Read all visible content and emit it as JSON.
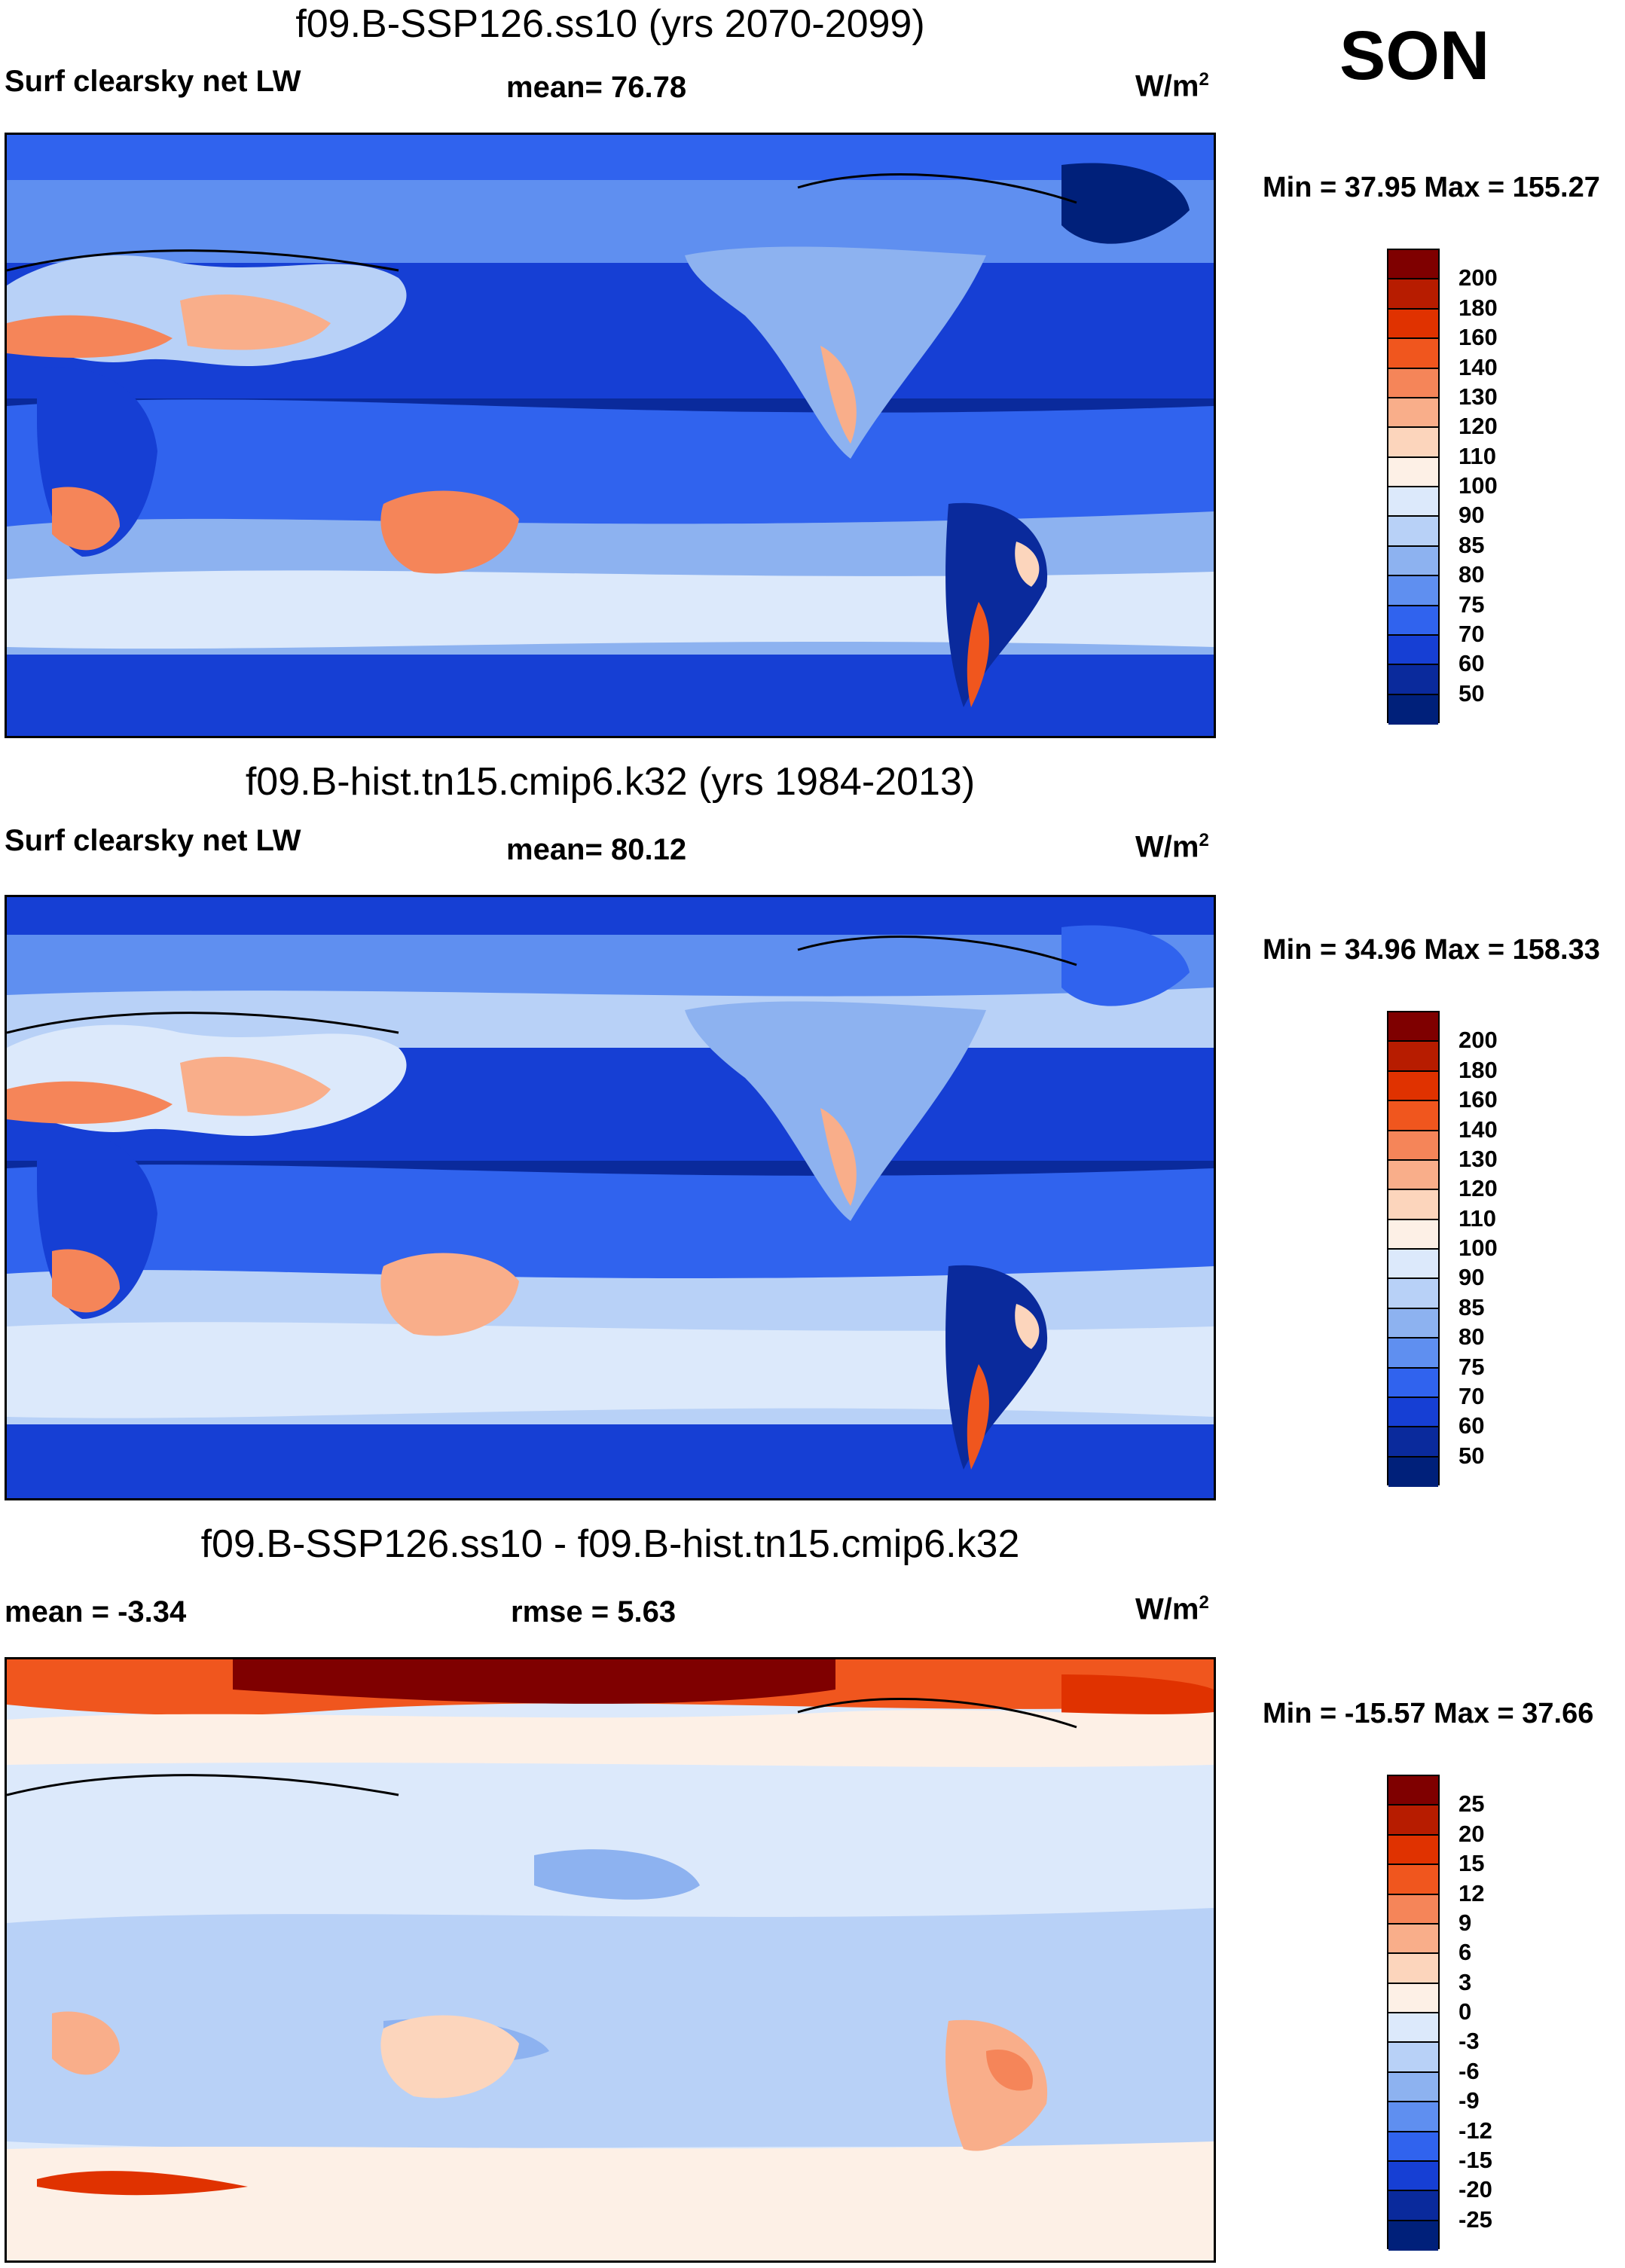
{
  "season": "SON",
  "panels": [
    {
      "title": "f09.B-SSP126.ss10 (yrs 2070-2099)",
      "left_label": "Surf clearsky net LW",
      "center_label": "mean=  76.78",
      "unit": "W/m",
      "unit_sup": "2",
      "minmax": "Min =  37.95 Max = 155.27",
      "colorbar": {
        "labels": [
          "200",
          "180",
          "160",
          "140",
          "130",
          "120",
          "110",
          "100",
          "90",
          "85",
          "80",
          "75",
          "70",
          "60",
          "50"
        ],
        "colors": [
          "#7f0000",
          "#b71c00",
          "#e03200",
          "#f0561e",
          "#f58559",
          "#f9ae8a",
          "#fcd5bc",
          "#fdf0e6",
          "#dce9fb",
          "#b8d1f7",
          "#8db2f0",
          "#5f8ff0",
          "#3063ee",
          "#163fd4",
          "#0a2a9c",
          "#00207a"
        ]
      }
    },
    {
      "title": "f09.B-hist.tn15.cmip6.k32 (yrs 1984-2013)",
      "left_label": "Surf clearsky net LW",
      "center_label": "mean=  80.12",
      "unit": "W/m",
      "unit_sup": "2",
      "minmax": "Min =  34.96 Max = 158.33",
      "colorbar": {
        "labels": [
          "200",
          "180",
          "160",
          "140",
          "130",
          "120",
          "110",
          "100",
          "90",
          "85",
          "80",
          "75",
          "70",
          "60",
          "50"
        ],
        "colors": [
          "#7f0000",
          "#b71c00",
          "#e03200",
          "#f0561e",
          "#f58559",
          "#f9ae8a",
          "#fcd5bc",
          "#fdf0e6",
          "#dce9fb",
          "#b8d1f7",
          "#8db2f0",
          "#5f8ff0",
          "#3063ee",
          "#163fd4",
          "#0a2a9c",
          "#00207a"
        ]
      }
    },
    {
      "title": "f09.B-SSP126.ss10 - f09.B-hist.tn15.cmip6.k32",
      "left_label": "mean =  -3.34",
      "center_label": "rmse =    5.63",
      "unit": "W/m",
      "unit_sup": "2",
      "minmax": "Min = -15.57 Max =  37.66",
      "colorbar": {
        "labels": [
          "25",
          "20",
          "15",
          "12",
          "9",
          "6",
          "3",
          "0",
          "-3",
          "-6",
          "-9",
          "-12",
          "-15",
          "-20",
          "-25"
        ],
        "colors": [
          "#7f0000",
          "#b71c00",
          "#e03200",
          "#f0561e",
          "#f58559",
          "#f9ae8a",
          "#fcd5bc",
          "#fdf0e6",
          "#dce9fb",
          "#b8d1f7",
          "#8db2f0",
          "#5f8ff0",
          "#3063ee",
          "#163fd4",
          "#0a2a9c",
          "#00207a"
        ]
      }
    }
  ]
}
